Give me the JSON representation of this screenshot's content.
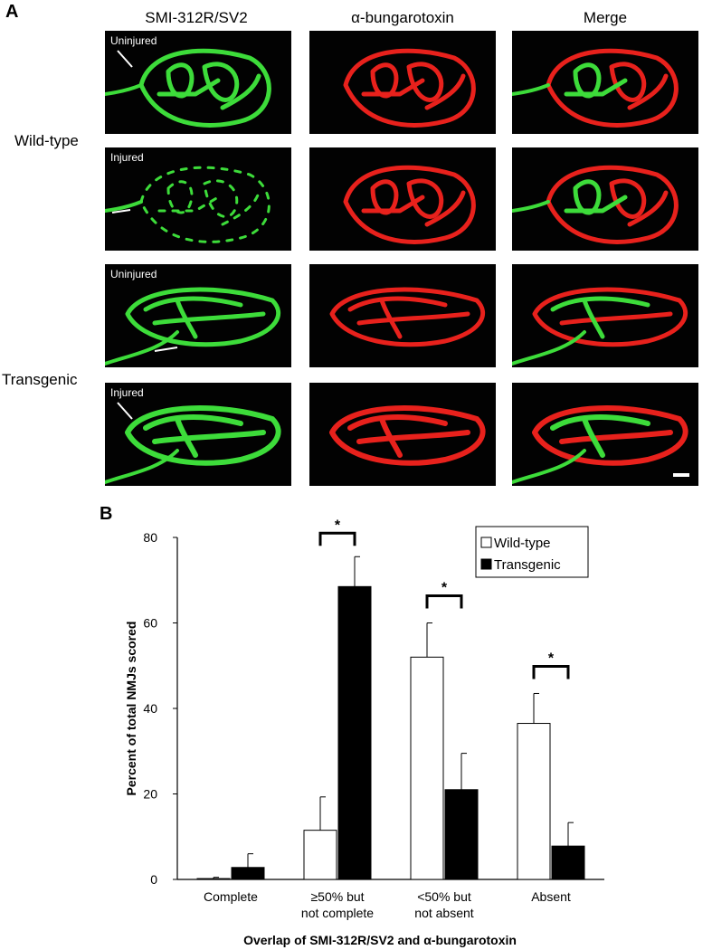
{
  "panel_a": {
    "letter": "A",
    "columns": [
      "SMI-312R/SV2",
      "α-bungarotoxin",
      "Merge"
    ],
    "rows": [
      {
        "group": "Wild-type",
        "conditions": [
          "Uninjured",
          "Injured"
        ]
      },
      {
        "group": "Transgenic",
        "conditions": [
          "Uninjured",
          "Injured"
        ]
      }
    ],
    "colors": {
      "green": "#3ddc3a",
      "red": "#e8211c",
      "merge": "#d8c62a"
    }
  },
  "panel_b": {
    "letter": "B"
  },
  "chart_data": {
    "type": "bar",
    "categories": [
      "Complete",
      "≥50% but\nnot complete",
      "<50% but\nnot absent",
      "Absent"
    ],
    "series": [
      {
        "name": "Wild-type",
        "values": [
          0.2,
          11.5,
          52,
          36.5
        ],
        "errors": [
          0.3,
          7.8,
          8,
          7
        ],
        "color": "#ffffff"
      },
      {
        "name": "Transgenic",
        "values": [
          2.8,
          68.5,
          21,
          7.8
        ],
        "errors": [
          3.2,
          7,
          8.5,
          5.5
        ],
        "color": "#000000"
      }
    ],
    "ylabel": "Percent of total NMJs scored",
    "xlabel": "Overlap of SMI-312R/SV2 and α-bungarotoxin",
    "ylim": [
      0,
      80
    ],
    "yticks": [
      0,
      20,
      40,
      60,
      80
    ],
    "significance": [
      {
        "category": 1,
        "label": "*"
      },
      {
        "category": 2,
        "label": "*"
      },
      {
        "category": 3,
        "label": "*"
      }
    ],
    "legend_position": "top-right",
    "grid": false
  }
}
